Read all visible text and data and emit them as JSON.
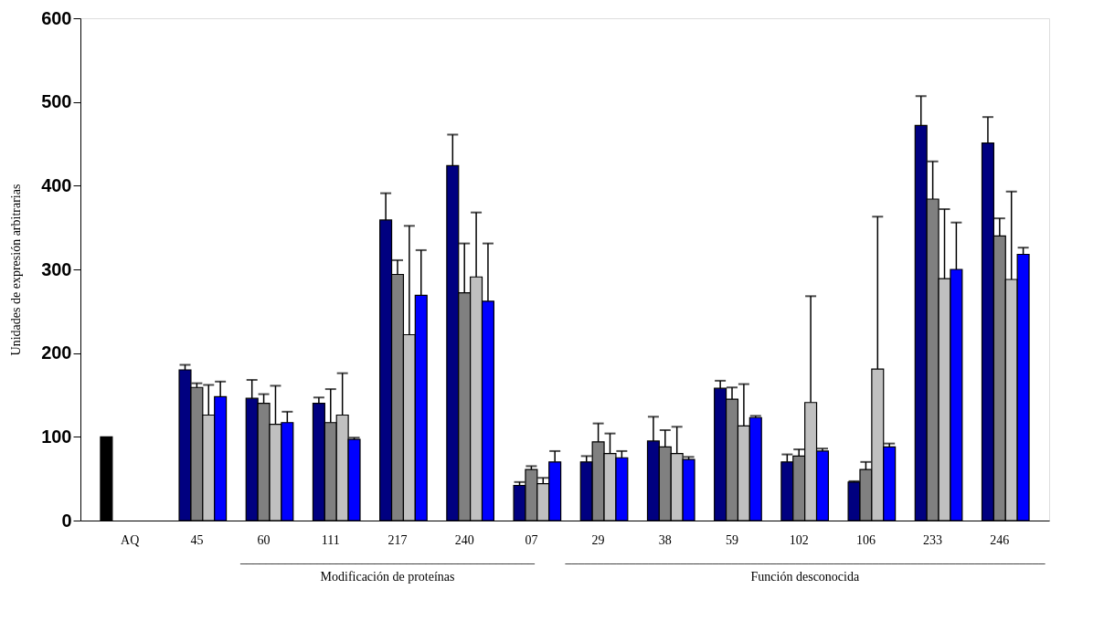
{
  "chart_data": {
    "type": "bar",
    "ylabel": "Unidades de expresión arbitrarias",
    "categories": [
      "AQ",
      "45",
      "60",
      "111",
      "217",
      "240",
      "07",
      "29",
      "38",
      "59",
      "102",
      "106",
      "233",
      "246"
    ],
    "ylim": [
      0,
      600
    ],
    "yticks": [
      0,
      100,
      200,
      300,
      400,
      500,
      600
    ],
    "grid": false,
    "legend": false,
    "annotations": [
      "______________________________________________\nModificación de proteínas",
      "___________________________________________________________________________\nFunción desconocida"
    ],
    "series": [
      {
        "color": "#000000",
        "values": [
          100,
          null,
          null,
          null,
          null,
          null,
          null,
          null,
          null,
          null,
          null,
          null,
          null,
          null
        ],
        "errors": [
          null,
          null,
          null,
          null,
          null,
          null,
          null,
          null,
          null,
          null,
          null,
          null,
          null,
          null
        ]
      },
      {
        "color": "#000080",
        "values": [
          null,
          180,
          146,
          140,
          359,
          424,
          42,
          70,
          95,
          158,
          70,
          46,
          472,
          451
        ],
        "errors": [
          null,
          [
            180,
            186
          ],
          [
            146,
            168
          ],
          [
            140,
            147
          ],
          [
            359,
            391
          ],
          [
            424,
            461
          ],
          [
            42,
            46
          ],
          [
            70,
            77
          ],
          [
            95,
            124
          ],
          [
            158,
            167
          ],
          [
            70,
            79
          ],
          [
            46,
            47
          ],
          [
            472,
            507
          ],
          [
            451,
            482
          ]
        ]
      },
      {
        "color": "#808080",
        "values": [
          null,
          159,
          140,
          117,
          294,
          272,
          61,
          94,
          88,
          145,
          77,
          61,
          384,
          340
        ],
        "errors": [
          null,
          [
            159,
            164
          ],
          [
            140,
            151
          ],
          [
            117,
            157
          ],
          [
            294,
            311
          ],
          [
            272,
            331
          ],
          [
            61,
            65
          ],
          [
            94,
            116
          ],
          [
            88,
            108
          ],
          [
            145,
            159
          ],
          [
            77,
            85
          ],
          [
            61,
            70
          ],
          [
            384,
            429
          ],
          [
            340,
            361
          ]
        ]
      },
      {
        "color": "#c0c0c0",
        "values": [
          null,
          126,
          115,
          126,
          222,
          291,
          44,
          80,
          80,
          113,
          141,
          181,
          289,
          288
        ],
        "errors": [
          null,
          [
            126,
            162
          ],
          [
            115,
            161
          ],
          [
            126,
            176
          ],
          [
            222,
            352
          ],
          [
            291,
            368
          ],
          [
            44,
            51
          ],
          [
            80,
            104
          ],
          [
            80,
            112
          ],
          [
            113,
            163
          ],
          [
            141,
            268
          ],
          [
            181,
            363
          ],
          [
            289,
            372
          ],
          [
            288,
            393
          ]
        ]
      },
      {
        "color": "#0000ff",
        "values": [
          null,
          148,
          117,
          97,
          269,
          262,
          70,
          75,
          73,
          123,
          83,
          88,
          300,
          318
        ],
        "errors": [
          null,
          [
            148,
            166
          ],
          [
            117,
            130
          ],
          [
            97,
            99
          ],
          [
            269,
            323
          ],
          [
            262,
            331
          ],
          [
            70,
            83
          ],
          [
            75,
            83
          ],
          [
            73,
            76
          ],
          [
            123,
            125
          ],
          [
            83,
            86
          ],
          [
            88,
            92
          ],
          [
            300,
            356
          ],
          [
            318,
            326
          ]
        ]
      }
    ]
  }
}
